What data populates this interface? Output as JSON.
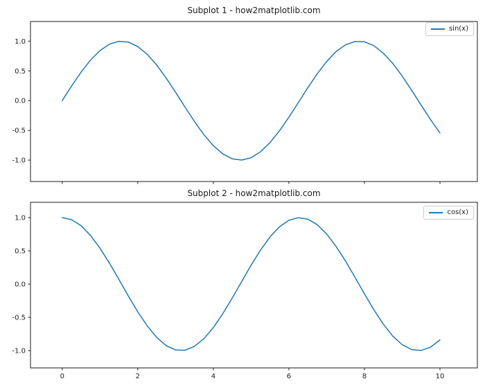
{
  "figure": {
    "background": "#ffffff",
    "spine_color": "#1a1a1a",
    "tick_label_color": "#1a1a1a",
    "legend_border_color": "#cccccc"
  },
  "chart_data": [
    {
      "type": "line",
      "title": "Subplot 1 - how2matplotlib.com",
      "legend": {
        "label": "sin(x)",
        "position": "upper right"
      },
      "line_color": "#1f77b4",
      "grid": false,
      "xlim": [
        -0.84,
        10.99
      ],
      "ylim": [
        -1.36,
        1.33
      ],
      "xticks": {
        "values": [
          0,
          2,
          4,
          6,
          8,
          10
        ],
        "labels": [
          "",
          "",
          "",
          "",
          "",
          ""
        ]
      },
      "yticks": {
        "values": [
          1.0,
          0.5,
          0.0,
          -0.5,
          -1.0
        ],
        "labels": [
          "1.0",
          "0.5",
          "0.0",
          "-0.5",
          "-1.0"
        ]
      },
      "x": [
        0,
        0.25,
        0.5,
        0.75,
        1,
        1.25,
        1.5,
        1.75,
        2,
        2.25,
        2.5,
        2.75,
        3,
        3.25,
        3.5,
        3.75,
        4,
        4.25,
        4.5,
        4.75,
        5,
        5.25,
        5.5,
        5.75,
        6,
        6.25,
        6.5,
        6.75,
        7,
        7.25,
        7.5,
        7.75,
        8,
        8.25,
        8.5,
        8.75,
        9,
        9.25,
        9.5,
        9.75,
        10
      ],
      "y": [
        0,
        0.247,
        0.479,
        0.682,
        0.841,
        0.949,
        0.997,
        0.984,
        0.909,
        0.778,
        0.599,
        0.382,
        0.141,
        -0.108,
        -0.351,
        -0.572,
        -0.757,
        -0.895,
        -0.978,
        -0.999,
        -0.959,
        -0.859,
        -0.706,
        -0.508,
        -0.279,
        -0.033,
        0.215,
        0.45,
        0.657,
        0.825,
        0.938,
        0.994,
        0.989,
        0.924,
        0.798,
        0.625,
        0.412,
        0.174,
        -0.075,
        -0.32,
        -0.544
      ]
    },
    {
      "type": "line",
      "title": "Subplot 2 - how2matplotlib.com",
      "legend": {
        "label": "cos(x)",
        "position": "upper right"
      },
      "line_color": "#1f77b4",
      "grid": false,
      "xlim": [
        -0.84,
        10.99
      ],
      "ylim": [
        -1.26,
        1.23
      ],
      "xticks": {
        "values": [
          0,
          2,
          4,
          6,
          8,
          10
        ],
        "labels": [
          "0",
          "2",
          "4",
          "6",
          "8",
          "10"
        ]
      },
      "yticks": {
        "values": [
          1.0,
          0.5,
          0.0,
          -0.5,
          -1.0
        ],
        "labels": [
          "1.0",
          "0.5",
          "0.0",
          "-0.5",
          "-1.0"
        ]
      },
      "x": [
        0,
        0.25,
        0.5,
        0.75,
        1,
        1.25,
        1.5,
        1.75,
        2,
        2.25,
        2.5,
        2.75,
        3,
        3.25,
        3.5,
        3.75,
        4,
        4.25,
        4.5,
        4.75,
        5,
        5.25,
        5.5,
        5.75,
        6,
        6.25,
        6.5,
        6.75,
        7,
        7.25,
        7.5,
        7.75,
        8,
        8.25,
        8.5,
        8.75,
        9,
        9.25,
        9.5,
        9.75,
        10
      ],
      "y": [
        1,
        0.969,
        0.878,
        0.732,
        0.54,
        0.315,
        0.071,
        -0.178,
        -0.416,
        -0.628,
        -0.801,
        -0.924,
        -0.99,
        -0.994,
        -0.936,
        -0.82,
        -0.654,
        -0.446,
        -0.211,
        0.038,
        0.284,
        0.512,
        0.709,
        0.861,
        0.96,
        0.999,
        0.977,
        0.895,
        0.754,
        0.566,
        0.347,
        0.104,
        -0.146,
        -0.386,
        -0.602,
        -0.783,
        -0.911,
        -0.985,
        -0.997,
        -0.948,
        -0.839
      ]
    }
  ]
}
